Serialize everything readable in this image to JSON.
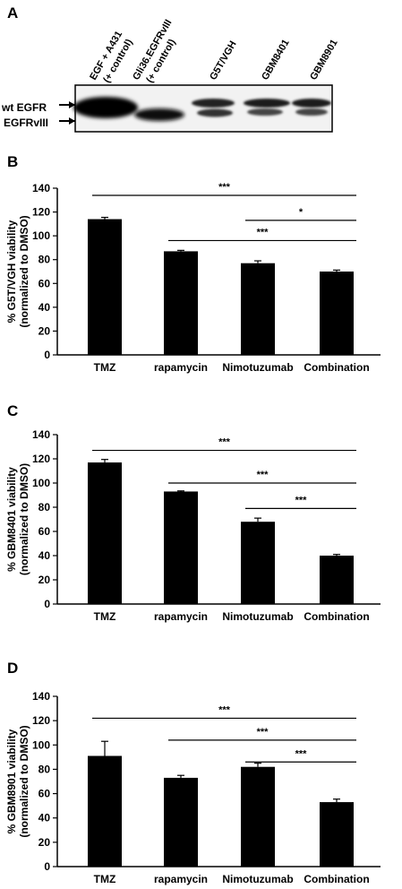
{
  "figure_a": {
    "letter": "A",
    "lanes": [
      "EGF + A431",
      "(+ control)",
      "Gli36.EGFRvIII",
      "(+ control)",
      "G5T/VGH",
      "GBM8401",
      "GBM8901"
    ],
    "bands": [
      "wt EGFR",
      "EGFRvIII"
    ]
  },
  "chart_data": [
    {
      "letter": "B",
      "type": "bar",
      "ylabel_line1": "% G5T/VGH viability",
      "ylabel_line2": "(normalized to DMSO)",
      "categories": [
        "TMZ",
        "rapamycin",
        "Nimotuzumab",
        "Combination"
      ],
      "values": [
        114,
        87,
        77,
        70
      ],
      "errors": [
        1.5,
        0.8,
        2,
        1.2
      ],
      "ylim": [
        0,
        140
      ],
      "yticks": [
        0,
        20,
        40,
        60,
        80,
        100,
        120,
        140
      ],
      "significance": [
        {
          "from": 0,
          "to": 3,
          "label": "***",
          "y": 134
        },
        {
          "from": 2,
          "to": 3,
          "label": "*",
          "y": 113
        },
        {
          "from": 1,
          "to": 3,
          "label": "***",
          "y": 96
        }
      ]
    },
    {
      "letter": "C",
      "type": "bar",
      "ylabel_line1": "% GBM8401 viability",
      "ylabel_line2": "(normalized to DMSO)",
      "categories": [
        "TMZ",
        "rapamycin",
        "Nimotuzumab",
        "Combination"
      ],
      "values": [
        117,
        93,
        68,
        40
      ],
      "errors": [
        2.5,
        0.5,
        3,
        1
      ],
      "ylim": [
        0,
        140
      ],
      "yticks": [
        0,
        20,
        40,
        60,
        80,
        100,
        120,
        140
      ],
      "significance": [
        {
          "from": 0,
          "to": 3,
          "label": "***",
          "y": 127
        },
        {
          "from": 1,
          "to": 3,
          "label": "***",
          "y": 100
        },
        {
          "from": 2,
          "to": 3,
          "label": "***",
          "y": 79
        }
      ]
    },
    {
      "letter": "D",
      "type": "bar",
      "ylabel_line1": "% GBM8901 viability",
      "ylabel_line2": "(normalized to DMSO)",
      "categories": [
        "TMZ",
        "rapamycin",
        "Nimotuzumab",
        "Combination"
      ],
      "values": [
        91,
        73,
        82,
        53
      ],
      "errors": [
        12,
        2,
        3,
        2.5
      ],
      "ylim": [
        0,
        140
      ],
      "yticks": [
        0,
        20,
        40,
        60,
        80,
        100,
        120,
        140
      ],
      "significance": [
        {
          "from": 0,
          "to": 3,
          "label": "***",
          "y": 122
        },
        {
          "from": 1,
          "to": 3,
          "label": "***",
          "y": 104
        },
        {
          "from": 2,
          "to": 3,
          "label": "***",
          "y": 86
        }
      ]
    }
  ]
}
